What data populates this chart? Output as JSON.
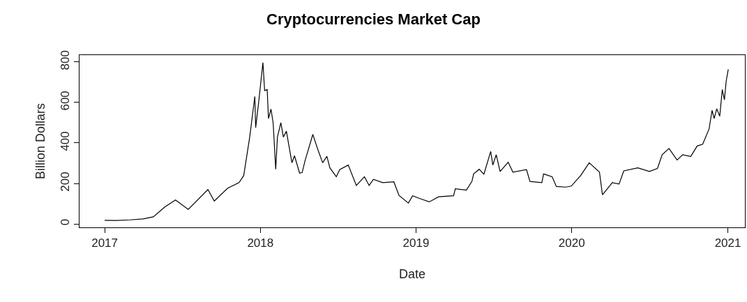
{
  "chart_data": {
    "type": "line",
    "title": "Cryptocurrencies Market Cap",
    "xlabel": "Date",
    "ylabel": "Billion Dollars",
    "x": [
      "2017-01-01",
      "2017-01-28",
      "2017-03-01",
      "2017-04-01",
      "2017-04-25",
      "2017-05-22",
      "2017-06-16",
      "2017-07-16",
      "2017-08-31",
      "2017-09-15",
      "2017-10-16",
      "2017-11-12",
      "2017-11-23",
      "2017-12-07",
      "2017-12-19",
      "2017-12-21",
      "2017-12-28",
      "2018-01-07",
      "2018-01-11",
      "2018-01-17",
      "2018-01-20",
      "2018-01-26",
      "2018-01-31",
      "2018-02-06",
      "2018-02-10",
      "2018-02-18",
      "2018-02-24",
      "2018-03-03",
      "2018-03-16",
      "2018-03-22",
      "2018-04-03",
      "2018-04-09",
      "2018-04-16",
      "2018-05-04",
      "2018-05-17",
      "2018-05-27",
      "2018-06-06",
      "2018-06-13",
      "2018-06-28",
      "2018-07-06",
      "2018-07-26",
      "2018-08-14",
      "2018-09-02",
      "2018-09-13",
      "2018-09-23",
      "2018-10-15",
      "2018-11-10",
      "2018-11-22",
      "2018-12-14",
      "2018-12-24",
      "2019-01-10",
      "2019-02-01",
      "2019-02-23",
      "2019-03-30",
      "2019-04-03",
      "2019-04-29",
      "2019-05-12",
      "2019-05-16",
      "2019-05-29",
      "2019-06-09",
      "2019-06-25",
      "2019-06-30",
      "2019-07-08",
      "2019-07-17",
      "2019-08-05",
      "2019-08-16",
      "2019-09-17",
      "2019-09-25",
      "2019-10-23",
      "2019-10-27",
      "2019-11-16",
      "2019-11-26",
      "2019-12-18",
      "2019-12-31",
      "2020-01-22",
      "2020-02-11",
      "2020-03-06",
      "2020-03-13",
      "2020-04-05",
      "2020-04-21",
      "2020-05-02",
      "2020-06-04",
      "2020-07-01",
      "2020-07-20",
      "2020-07-31",
      "2020-08-16",
      "2020-09-04",
      "2020-09-17",
      "2020-10-06",
      "2020-10-21",
      "2020-11-03",
      "2020-11-18",
      "2020-11-25",
      "2020-11-30",
      "2020-12-06",
      "2020-12-13",
      "2020-12-19",
      "2020-12-24",
      "2020-12-28",
      "2021-01-02"
    ],
    "series": [
      {
        "color": "#000000",
        "values": [
          18,
          17,
          20,
          25,
          35,
          84,
          118,
          72,
          170,
          113,
          176,
          204,
          239,
          429,
          630,
          476,
          601,
          797,
          659,
          664,
          521,
          567,
          498,
          270,
          429,
          500,
          429,
          458,
          302,
          337,
          251,
          254,
          314,
          442,
          360,
          302,
          334,
          277,
          233,
          268,
          291,
          190,
          233,
          190,
          220,
          204,
          208,
          141,
          103,
          139,
          125,
          109,
          134,
          139,
          174,
          167,
          210,
          247,
          270,
          245,
          358,
          291,
          342,
          259,
          305,
          256,
          268,
          210,
          204,
          247,
          233,
          185,
          182,
          187,
          239,
          302,
          256,
          144,
          204,
          197,
          262,
          277,
          259,
          274,
          342,
          373,
          316,
          342,
          333,
          385,
          394,
          469,
          561,
          521,
          569,
          532,
          664,
          613,
          704,
          764
        ]
      }
    ],
    "xlim": [
      "2016-11-03",
      "2021-02-10"
    ],
    "xticks": [
      {
        "value": "2017-01-01",
        "label": "2017"
      },
      {
        "value": "2018-01-01",
        "label": "2018"
      },
      {
        "value": "2019-01-01",
        "label": "2019"
      },
      {
        "value": "2020-01-01",
        "label": "2020"
      },
      {
        "value": "2021-01-01",
        "label": "2021"
      }
    ],
    "ylim": [
      -17,
      834
    ],
    "yticks": [
      0,
      200,
      400,
      600,
      800
    ],
    "marker": "none",
    "line_style": "solid"
  }
}
